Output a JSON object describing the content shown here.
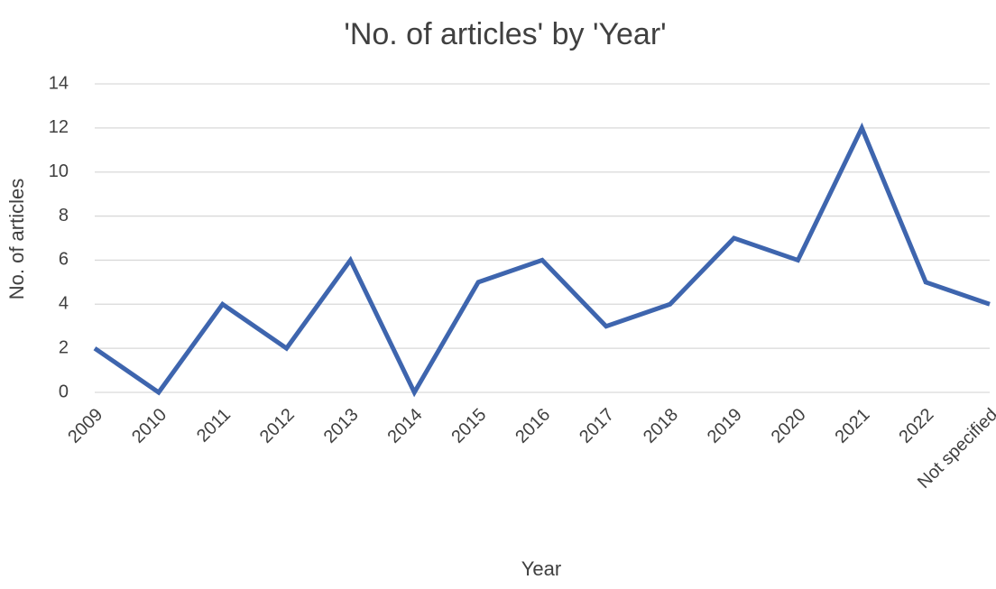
{
  "chart_data": {
    "type": "line",
    "title": "'No. of articles' by 'Year'",
    "x_label": "Year",
    "y_label": "No. of articles",
    "categories": [
      "2009",
      "2010",
      "2011",
      "2012",
      "2013",
      "2014",
      "2015",
      "2016",
      "2017",
      "2018",
      "2019",
      "2020",
      "2021",
      "2022",
      "Not specified"
    ],
    "series": [
      {
        "name": "No. of articles",
        "color": "#3e65ae",
        "values": [
          2,
          0,
          4,
          2,
          6,
          0,
          5,
          6,
          3,
          4,
          7,
          6,
          12,
          5,
          4
        ]
      }
    ],
    "ylim": [
      0,
      14
    ],
    "yticks": [
      0,
      2,
      4,
      6,
      8,
      10,
      12,
      14
    ],
    "grid": true
  }
}
